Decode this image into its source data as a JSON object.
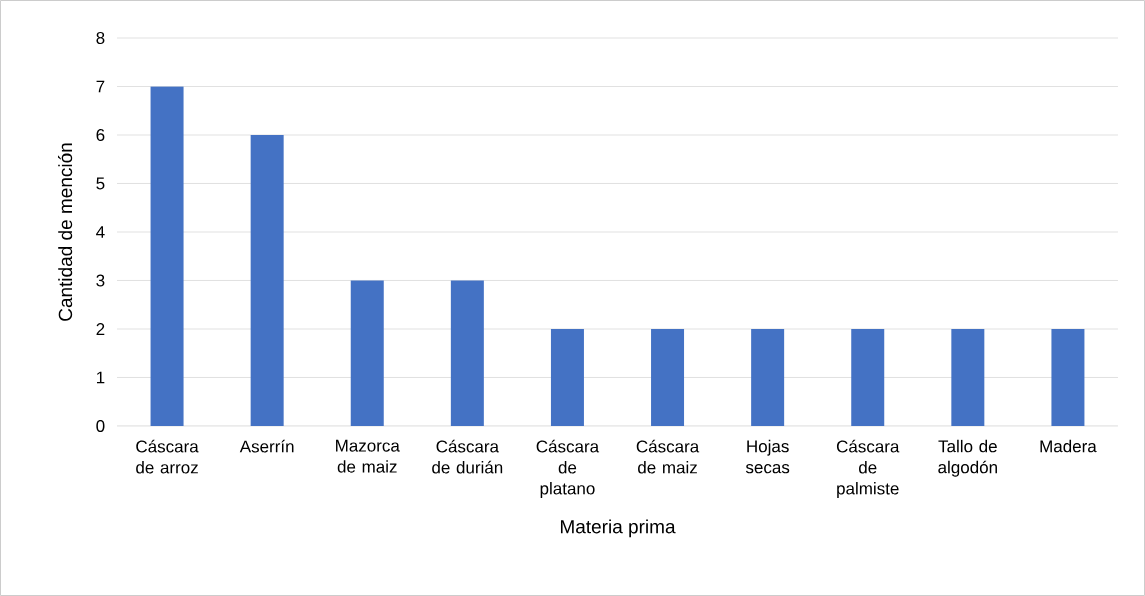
{
  "chart_data": {
    "type": "bar",
    "xlabel": "Materia prima",
    "ylabel": "Cantidad de mención",
    "categories": [
      "Cáscara de arroz",
      "Aserrín",
      "Mazorca de maiz",
      "Cáscara de durián",
      "Cáscara de platano",
      "Cáscara de maiz",
      "Hojas secas",
      "Cáscara de palmiste",
      "Tallo de algodón",
      "Madera"
    ],
    "values": [
      7,
      6,
      3,
      3,
      2,
      2,
      2,
      2,
      2,
      2
    ],
    "color": "#4472c4",
    "ylim": [
      0,
      8
    ],
    "yticks": [
      0,
      1,
      2,
      3,
      4,
      5,
      6,
      7,
      8
    ],
    "grid": "y"
  }
}
